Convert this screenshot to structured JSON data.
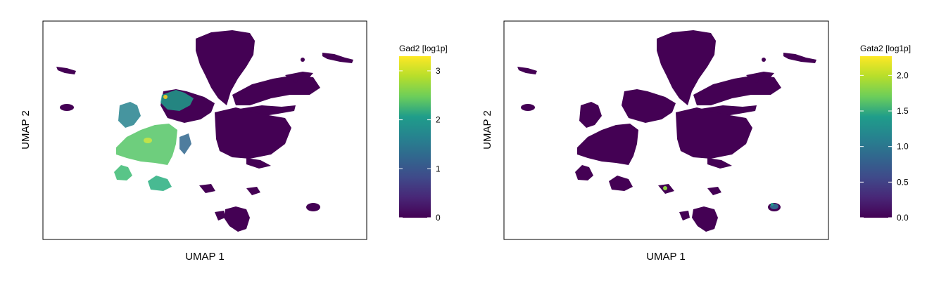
{
  "chart_data": [
    {
      "type": "scatter",
      "xlabel": "UMAP 1",
      "ylabel": "UMAP 2",
      "grid": false,
      "colorbar": {
        "title": "Gad2 [log1p]",
        "colormap": [
          "#440154",
          "#482777",
          "#3f4a8a",
          "#31678e",
          "#26838f",
          "#1f9d8a",
          "#6cce5a",
          "#b6de2b",
          "#fee825"
        ],
        "range": [
          0,
          3.3
        ],
        "ticks": [
          0,
          1,
          2,
          3
        ],
        "tick_labels": [
          "0",
          "1",
          "2",
          "3"
        ]
      }
    },
    {
      "type": "scatter",
      "xlabel": "UMAP 1",
      "ylabel": "UMAP 2",
      "grid": false,
      "colorbar": {
        "title": "Gata2 [log1p]",
        "colormap": [
          "#440154",
          "#482777",
          "#3f4a8a",
          "#31678e",
          "#26838f",
          "#1f9d8a",
          "#6cce5a",
          "#b6de2b",
          "#fee825"
        ],
        "range": [
          0,
          2.27
        ],
        "ticks": [
          0,
          0.5,
          1.0,
          1.5,
          2.0
        ],
        "tick_labels": [
          "0.0",
          "0.5",
          "1.0",
          "1.5",
          "2.0"
        ]
      }
    }
  ]
}
